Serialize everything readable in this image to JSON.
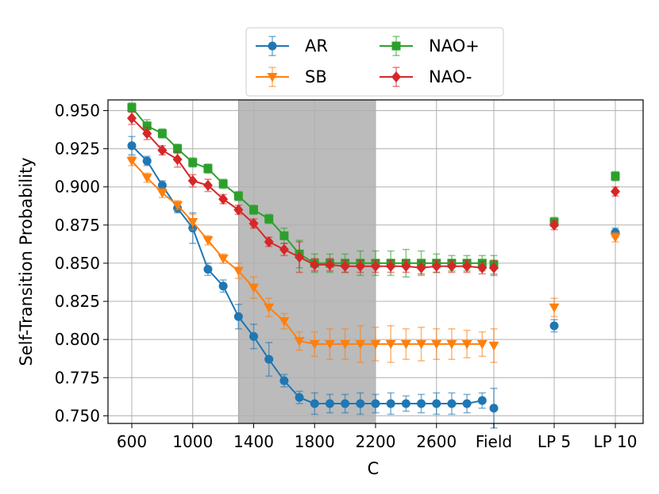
{
  "chart_data": {
    "type": "line",
    "title": "",
    "xlabel": "C",
    "ylabel": "Self-Transition Probability",
    "ylim": [
      0.745,
      0.957
    ],
    "grid": true,
    "legend_position": "top-center, above plot",
    "x_categories": [
      600,
      700,
      800,
      900,
      1000,
      1100,
      1200,
      1300,
      1400,
      1500,
      1600,
      1700,
      1800,
      1900,
      2000,
      2100,
      2200,
      2300,
      2400,
      2500,
      2600,
      2700,
      2800,
      2900,
      "Field",
      "LP 5",
      "LP 10"
    ],
    "x_tick_labels": [
      "600",
      "1000",
      "1400",
      "1800",
      "2200",
      "2600",
      "Field",
      "LP 5",
      "LP 10"
    ],
    "y_tick_labels": [
      "0.750",
      "0.775",
      "0.800",
      "0.825",
      "0.850",
      "0.875",
      "0.900",
      "0.925",
      "0.950"
    ],
    "shaded_region": {
      "from": 1300,
      "to": 2200,
      "color": "#bbbbbb"
    },
    "series": [
      {
        "name": "AR",
        "color": "#1f77b4",
        "marker": "circle",
        "x": [
          600,
          700,
          800,
          900,
          1000,
          1100,
          1200,
          1300,
          1400,
          1500,
          1600,
          1700,
          1800,
          1900,
          2000,
          2100,
          2200,
          2300,
          2400,
          2500,
          2600,
          2700,
          2800,
          2900
        ],
        "values": [
          0.927,
          0.917,
          0.901,
          0.886,
          0.873,
          0.846,
          0.835,
          0.815,
          0.802,
          0.787,
          0.773,
          0.762,
          0.758,
          0.758,
          0.758,
          0.758,
          0.758,
          0.758,
          0.758,
          0.758,
          0.758,
          0.758,
          0.758,
          0.76
        ],
        "errors": [
          0.006,
          0.003,
          0.003,
          0.003,
          0.01,
          0.004,
          0.004,
          0.008,
          0.008,
          0.011,
          0.004,
          0.004,
          0.007,
          0.006,
          0.006,
          0.007,
          0.006,
          0.007,
          0.005,
          0.006,
          0.007,
          0.007,
          0.006,
          0.005
        ],
        "extra_points": [
          {
            "x": "Field",
            "value": 0.755,
            "error": 0.013
          },
          {
            "x": "LP 5",
            "value": 0.809,
            "error": 0.004
          },
          {
            "x": "LP 10",
            "value": 0.87,
            "error": 0.003
          }
        ]
      },
      {
        "name": "SB",
        "color": "#ff7f0e",
        "marker": "triangle-down",
        "x": [
          600,
          700,
          800,
          900,
          1000,
          1100,
          1200,
          1300,
          1400,
          1500,
          1600,
          1700,
          1800,
          1900,
          2000,
          2100,
          2200,
          2300,
          2400,
          2500,
          2600,
          2700,
          2800,
          2900
        ],
        "values": [
          0.917,
          0.906,
          0.896,
          0.888,
          0.877,
          0.865,
          0.853,
          0.845,
          0.834,
          0.821,
          0.812,
          0.799,
          0.797,
          0.797,
          0.797,
          0.797,
          0.797,
          0.797,
          0.797,
          0.797,
          0.797,
          0.797,
          0.797,
          0.797
        ],
        "errors": [
          0.003,
          0.003,
          0.003,
          0.003,
          0.005,
          0.003,
          0.003,
          0.005,
          0.007,
          0.006,
          0.005,
          0.006,
          0.008,
          0.01,
          0.01,
          0.012,
          0.011,
          0.012,
          0.01,
          0.011,
          0.01,
          0.01,
          0.009,
          0.008
        ],
        "extra_points": [
          {
            "x": "Field",
            "value": 0.796,
            "error": 0.011
          },
          {
            "x": "LP 5",
            "value": 0.821,
            "error": 0.006
          },
          {
            "x": "LP 10",
            "value": 0.867,
            "error": 0.003
          }
        ]
      },
      {
        "name": "NAO+",
        "color": "#2ca02c",
        "marker": "square",
        "x": [
          600,
          700,
          800,
          900,
          1000,
          1100,
          1200,
          1300,
          1400,
          1500,
          1600,
          1700,
          1800,
          1900,
          2000,
          2100,
          2200,
          2300,
          2400,
          2500,
          2600,
          2700,
          2800,
          2900
        ],
        "values": [
          0.952,
          0.94,
          0.935,
          0.925,
          0.916,
          0.912,
          0.902,
          0.894,
          0.885,
          0.879,
          0.868,
          0.856,
          0.85,
          0.85,
          0.85,
          0.85,
          0.85,
          0.85,
          0.85,
          0.85,
          0.85,
          0.85,
          0.85,
          0.85
        ],
        "errors": [
          0.003,
          0.004,
          0.003,
          0.003,
          0.003,
          0.003,
          0.003,
          0.003,
          0.003,
          0.003,
          0.005,
          0.009,
          0.006,
          0.006,
          0.006,
          0.008,
          0.008,
          0.008,
          0.009,
          0.008,
          0.006,
          0.005,
          0.005,
          0.005
        ],
        "extra_points": [
          {
            "x": "Field",
            "value": 0.849,
            "error": 0.006
          },
          {
            "x": "LP 5",
            "value": 0.877,
            "error": 0.003
          },
          {
            "x": "LP 10",
            "value": 0.907,
            "error": 0.003
          }
        ]
      },
      {
        "name": "NAO-",
        "color": "#d62728",
        "marker": "diamond",
        "x": [
          600,
          700,
          800,
          900,
          1000,
          1100,
          1200,
          1300,
          1400,
          1500,
          1600,
          1700,
          1800,
          1900,
          2000,
          2100,
          2200,
          2300,
          2400,
          2500,
          2600,
          2700,
          2800,
          2900
        ],
        "values": [
          0.945,
          0.935,
          0.924,
          0.918,
          0.904,
          0.901,
          0.892,
          0.885,
          0.876,
          0.864,
          0.859,
          0.854,
          0.849,
          0.849,
          0.848,
          0.848,
          0.848,
          0.848,
          0.848,
          0.847,
          0.848,
          0.848,
          0.848,
          0.847
        ],
        "errors": [
          0.004,
          0.004,
          0.003,
          0.005,
          0.004,
          0.004,
          0.003,
          0.003,
          0.003,
          0.003,
          0.004,
          0.01,
          0.004,
          0.004,
          0.004,
          0.004,
          0.004,
          0.004,
          0.004,
          0.004,
          0.004,
          0.004,
          0.004,
          0.004
        ],
        "extra_points": [
          {
            "x": "Field",
            "value": 0.847,
            "error": 0.005
          },
          {
            "x": "LP 5",
            "value": 0.875,
            "error": 0.003
          },
          {
            "x": "LP 10",
            "value": 0.897,
            "error": 0.003
          }
        ]
      }
    ]
  }
}
